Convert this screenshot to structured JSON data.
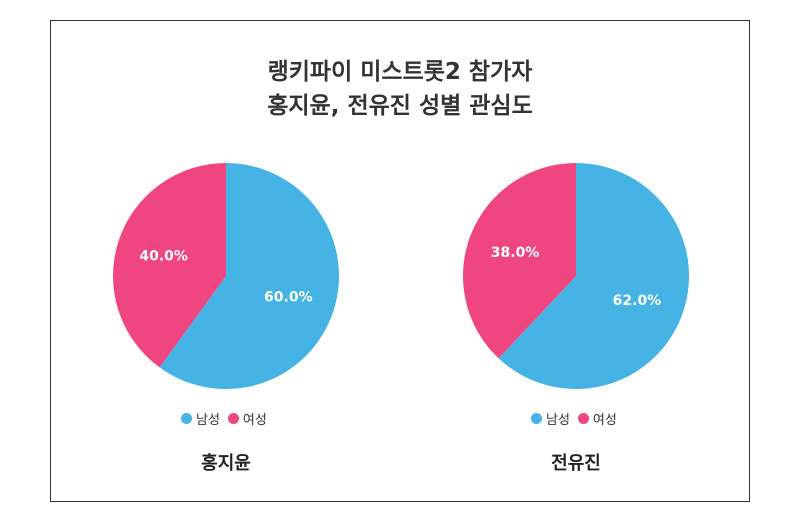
{
  "title": {
    "line1": "랭키파이 미스트롯2 참가자",
    "line2": "홍지윤, 전유진 성별 관심도"
  },
  "colors": {
    "male": "#45b3e3",
    "female": "#ef4581"
  },
  "chart_data": [
    {
      "type": "pie",
      "title": "홍지윤",
      "categories": [
        "남성",
        "여성"
      ],
      "values": [
        60.0,
        40.0
      ],
      "labels": [
        "60.0%",
        "40.0%"
      ],
      "legend": "bottom"
    },
    {
      "type": "pie",
      "title": "전유진",
      "categories": [
        "남성",
        "여성"
      ],
      "values": [
        62.0,
        38.0
      ],
      "labels": [
        "62.0%",
        "38.0%"
      ],
      "legend": "bottom"
    }
  ]
}
